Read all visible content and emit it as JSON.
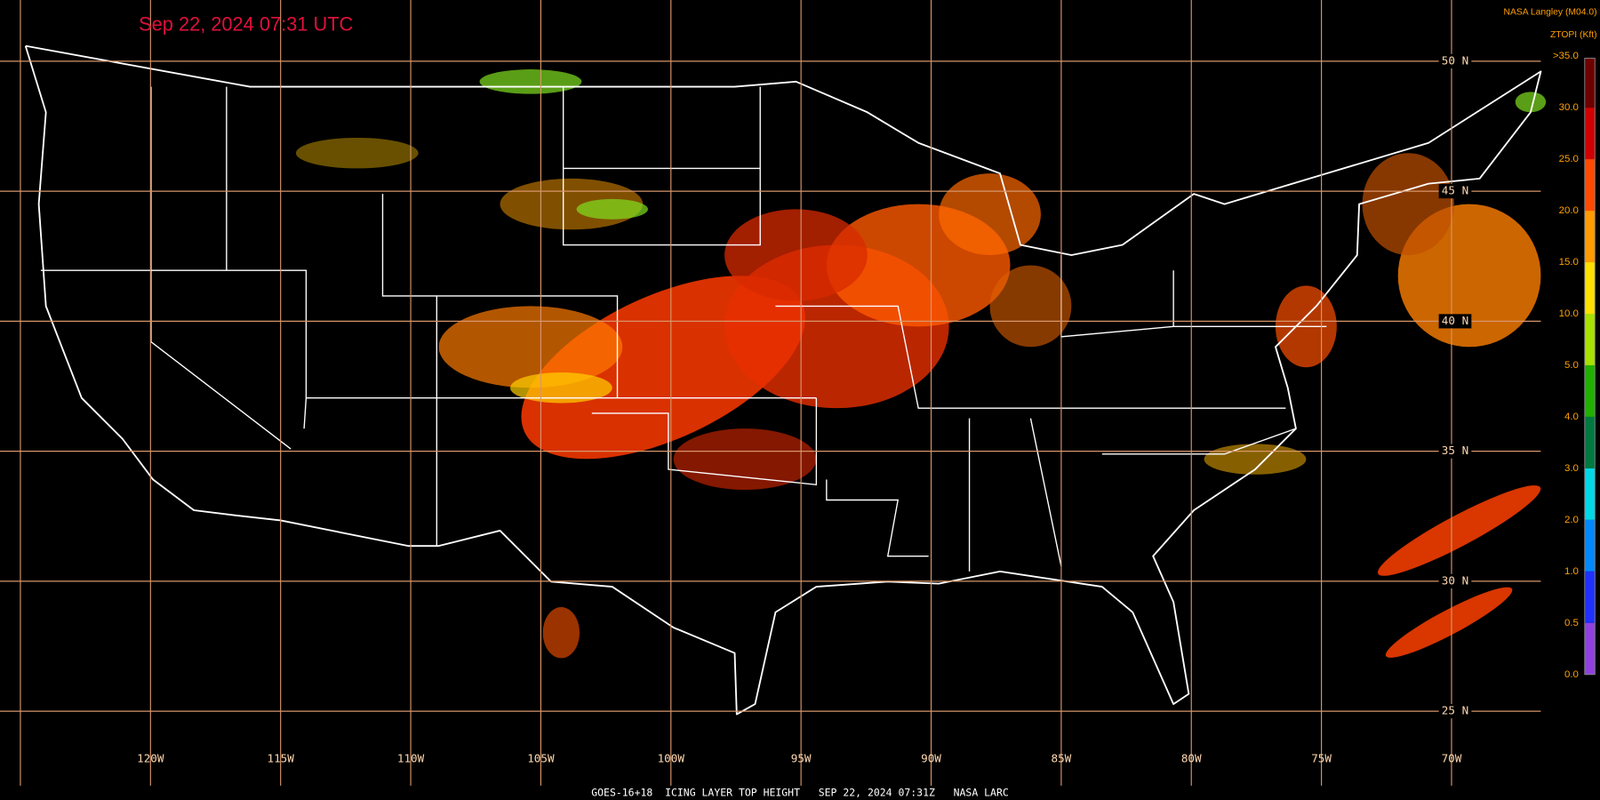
{
  "title": "Sep 22, 2024 07:31 UTC",
  "credit": "NASA Langley (M04.0)",
  "legend": {
    "title": "ZTOPI (Kft)",
    "labels": [
      ">35.0",
      "30.0",
      "25.0",
      "20.0",
      "15.0",
      "10.0",
      "5.0",
      "4.0",
      "3.0",
      "2.0",
      "1.0",
      "0.5",
      "0.0"
    ],
    "colors": [
      "#6e0000",
      "#d00000",
      "#ff4a00",
      "#ff9a00",
      "#ffe000",
      "#a8e000",
      "#20b000",
      "#007a40",
      "#00d8e8",
      "#0088ff",
      "#2030ff",
      "#9040e0"
    ]
  },
  "latitudes": [
    "50 N",
    "45 N",
    "40 N",
    "35 N",
    "30 N",
    "25 N"
  ],
  "longitudes": [
    "120W",
    "115W",
    "110W",
    "105W",
    "100W",
    "95W",
    "90W",
    "85W",
    "80W",
    "75W",
    "70W"
  ],
  "footer": "GOES-16+18  ICING LAYER TOP HEIGHT   SEP 22, 2024 07:31Z   NASA LARC"
}
